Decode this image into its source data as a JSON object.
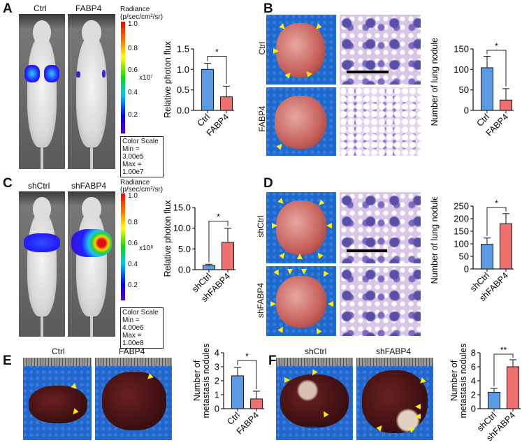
{
  "panels": {
    "A": {
      "letter": "A",
      "groups": [
        "Ctrl",
        "FABP4"
      ],
      "radiance_title": "Radiance",
      "radiance_unit": "(p/sec/cm²/sr)",
      "colorbar_ticks": [
        "1.0",
        "0.8",
        "0.6",
        "0.4",
        "0.2"
      ],
      "multiplier": "x10⁷",
      "color_scale": "Color Scale",
      "min": "Min = 3.00e5",
      "max": "Max = 1.00e7"
    },
    "B": {
      "letter": "B",
      "groups": [
        "Ctrl",
        "FABP4"
      ]
    },
    "C": {
      "letter": "C",
      "groups": [
        "shCtrl",
        "shFABP4"
      ],
      "radiance_title": "Radiance",
      "radiance_unit": "(p/sec/cm²/sr)",
      "colorbar_ticks": [
        "1.0",
        "0.8",
        "0.6",
        "0.4",
        "0.2"
      ],
      "multiplier": "x10⁸",
      "color_scale": "Color Scale",
      "min": "Min = 4.00e6",
      "max": "Max = 1.00e8"
    },
    "D": {
      "letter": "D",
      "groups": [
        "shCtrl",
        "shFABP4"
      ]
    },
    "E": {
      "letter": "E",
      "groups": [
        "Ctrl",
        "FABP4"
      ]
    },
    "F": {
      "letter": "F",
      "groups": [
        "shCtrl",
        "shFABP4"
      ]
    }
  },
  "colors": {
    "control": "#5b9be6",
    "treatment": "#f07070"
  },
  "chart_data": [
    {
      "type": "bar",
      "ylabel": "Relative photon flux",
      "categories": [
        "Ctrl",
        "FABP4"
      ],
      "values": [
        1.0,
        0.33
      ],
      "errors": [
        0.15,
        0.26
      ],
      "ylim": [
        0,
        1.5
      ],
      "ticks": [
        0,
        0.5,
        1.0,
        1.5
      ],
      "tick_labels": [
        "0.0",
        "0.5",
        "1.0",
        "1.5"
      ],
      "significance": "*"
    },
    {
      "type": "bar",
      "ylabel": "Number of lung nodules",
      "categories": [
        "Ctrl",
        "FABP4"
      ],
      "values": [
        104,
        25
      ],
      "errors": [
        28,
        28
      ],
      "ylim": [
        0,
        150
      ],
      "ticks": [
        0,
        50,
        100,
        150
      ],
      "tick_labels": [
        "0",
        "50",
        "100",
        "150"
      ],
      "significance": "*"
    },
    {
      "type": "bar",
      "ylabel": "Relative photon flux",
      "categories": [
        "shCtrl",
        "shFABP4"
      ],
      "values": [
        1.0,
        6.6
      ],
      "errors": [
        0.3,
        3.4
      ],
      "ylim": [
        0,
        15
      ],
      "ticks": [
        0,
        5,
        10,
        15
      ],
      "tick_labels": [
        "0.0",
        "5.0",
        "10.0",
        "15.0"
      ],
      "significance": "*"
    },
    {
      "type": "bar",
      "ylabel": "Number of lung nodules",
      "categories": [
        "shCtrl",
        "shFABP4"
      ],
      "values": [
        98,
        180
      ],
      "errors": [
        25,
        40
      ],
      "ylim": [
        0,
        250
      ],
      "ticks": [
        0,
        50,
        100,
        150,
        200,
        250
      ],
      "tick_labels": [
        "0",
        "50",
        "100",
        "150",
        "200",
        "250"
      ],
      "significance": "*"
    },
    {
      "type": "bar",
      "ylabel": "Number of metastasis nodules",
      "ylabel_lines": [
        "Number of",
        "metastasis nodules"
      ],
      "categories": [
        "Ctrl",
        "FABP4"
      ],
      "values": [
        2.35,
        0.7
      ],
      "errors": [
        0.6,
        0.55
      ],
      "ylim": [
        0,
        4
      ],
      "ticks": [
        0,
        1,
        2,
        3,
        4
      ],
      "tick_labels": [
        "0",
        "1",
        "2",
        "3",
        "4"
      ],
      "significance": "*"
    },
    {
      "type": "bar",
      "ylabel": "Number of metastasis nodules",
      "ylabel_lines": [
        "Number of",
        "metastasis nodules"
      ],
      "categories": [
        "shCtrl",
        "shFABP4"
      ],
      "values": [
        2.35,
        6.0
      ],
      "errors": [
        0.55,
        1.0
      ],
      "ylim": [
        0,
        8
      ],
      "ticks": [
        0,
        2,
        4,
        6,
        8
      ],
      "tick_labels": [
        "0",
        "2",
        "4",
        "6",
        "8"
      ],
      "significance": "**"
    }
  ]
}
